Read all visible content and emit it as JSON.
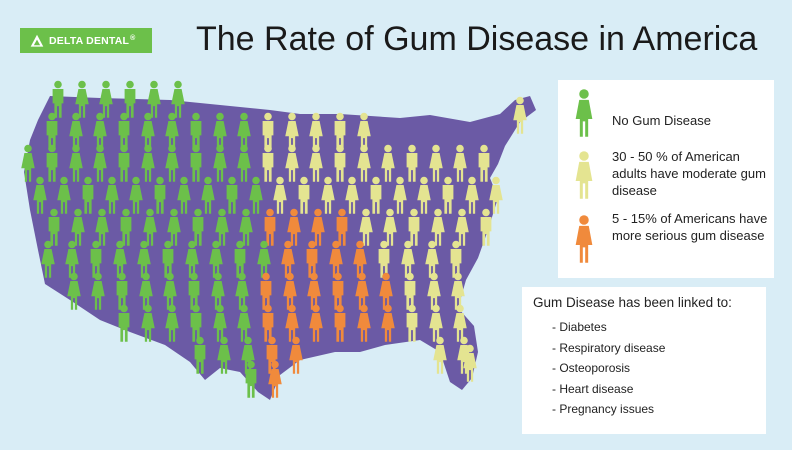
{
  "logo": {
    "text": "DELTA DENTAL",
    "trademark": "®",
    "color": "#6cc04a"
  },
  "title": "The Rate of Gum Disease in America",
  "colors": {
    "background": "#d9edf6",
    "map": "#6b5aa5",
    "no_disease": "#6cc04a",
    "moderate": "#e4e491",
    "serious": "#f08a3c"
  },
  "legend": [
    {
      "category": "no_disease",
      "figure": "female",
      "text": "No Gum Disease"
    },
    {
      "category": "moderate",
      "figure": "female",
      "text": "30 - 50 % of American adults have moderate gum disease"
    },
    {
      "category": "serious",
      "figure": "female",
      "text": "5 - 15% of Americans have more serious gum disease"
    }
  ],
  "linked": {
    "title": "Gum Disease has been linked to:",
    "items": [
      "- Diabetes",
      "- Respiratory disease",
      "- Osteoporosis",
      "- Heart disease",
      "- Pregnancy issues"
    ]
  }
}
